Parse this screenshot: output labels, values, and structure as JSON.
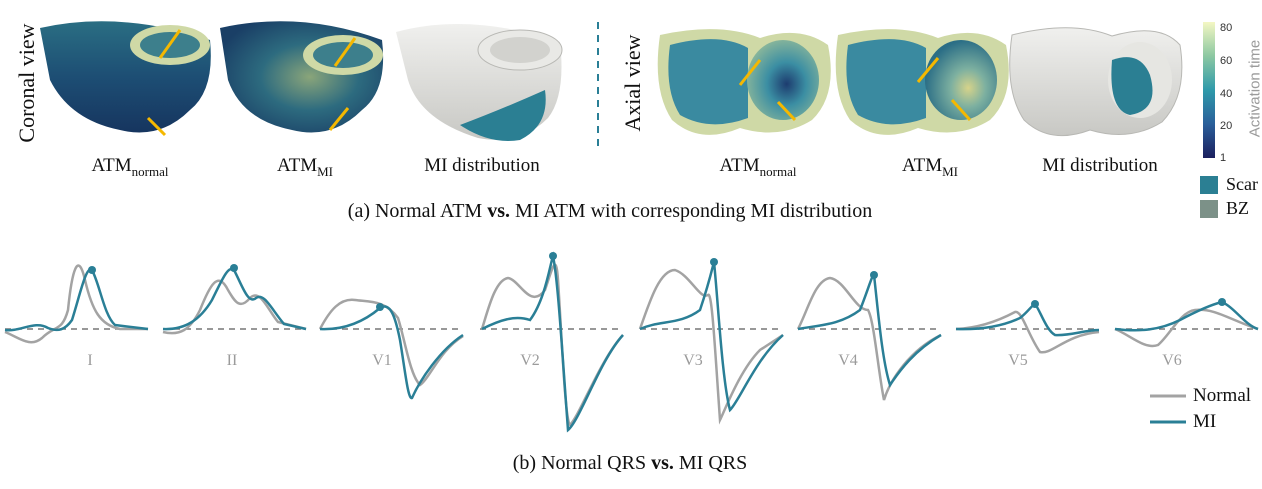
{
  "panel_a": {
    "coronal_label": "Coronal view",
    "axial_label": "Axial view",
    "items": [
      {
        "base": "ATM",
        "sub": "normal"
      },
      {
        "base": "ATM",
        "sub": "MI"
      },
      {
        "base": "MI distribution",
        "sub": ""
      },
      {
        "base": "ATM",
        "sub": "normal"
      },
      {
        "base": "ATM",
        "sub": "MI"
      },
      {
        "base": "MI distribution",
        "sub": ""
      }
    ],
    "caption_pre": "(a) Normal ATM ",
    "caption_bold": "vs.",
    "caption_post": " MI ATM with corresponding MI distribution",
    "colorbar": {
      "title": "Activation time",
      "ticks": [
        "80",
        "60",
        "40",
        "20",
        "1"
      ]
    },
    "legend": [
      {
        "label": "Scar",
        "color": "#2b7f93"
      },
      {
        "label": "BZ",
        "color": "#7c9188"
      }
    ]
  },
  "panel_b": {
    "leads": [
      "I",
      "II",
      "V1",
      "V2",
      "V3",
      "V4",
      "V5",
      "V6"
    ],
    "legend": [
      {
        "label": "Normal",
        "color": "#a3a3a3"
      },
      {
        "label": "MI",
        "color": "#2a7f96"
      }
    ],
    "caption_pre": "(b) Normal QRS ",
    "caption_bold": "vs.",
    "caption_post": " MI QRS"
  },
  "colors": {
    "normal": "#a3a3a3",
    "mi": "#2a7f96",
    "arrow": "#f5b800",
    "divider": "#2a7f96"
  }
}
